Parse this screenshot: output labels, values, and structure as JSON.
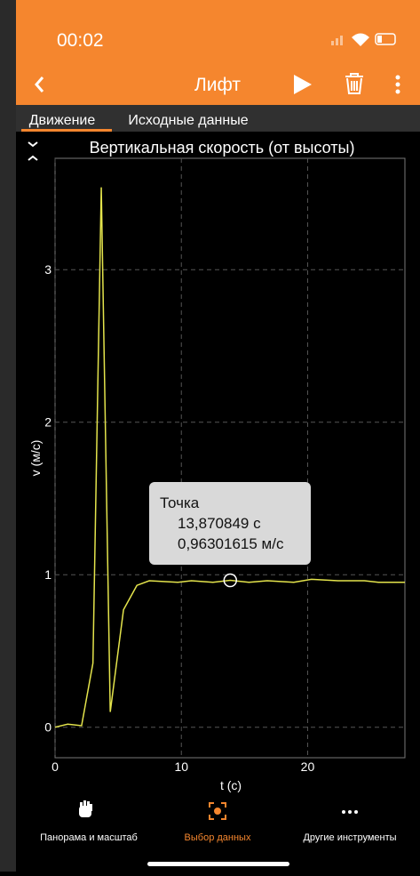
{
  "status_bar": {
    "time": "00:02"
  },
  "toolbar": {
    "title": "Лифт"
  },
  "tabs": [
    "Движение",
    "Исходные данные"
  ],
  "chart": {
    "type": "line",
    "title": "Вертикальная скорость (от высоты)",
    "x_label": "t (с)",
    "y_label": "v (м/с)",
    "xlim": [
      0,
      27.7
    ],
    "ylim": [
      -0.2,
      3.73
    ],
    "xticks": [
      0,
      10,
      20
    ],
    "yticks": [
      0,
      1,
      2,
      3
    ],
    "grid": true,
    "series": [
      {
        "color": "#e4e44c",
        "x": [
          0,
          1.0,
          2.1,
          3.0,
          3.66,
          4.37,
          5.42,
          6.48,
          7.46,
          9.72,
          10.8,
          12.5,
          13.87,
          15.35,
          16.8,
          18.9,
          20.3,
          22.4,
          24.5,
          25.6,
          27.7
        ],
        "y": [
          0,
          0.02,
          0.01,
          0.42,
          3.54,
          0.1,
          0.77,
          0.93,
          0.96,
          0.95,
          0.96,
          0.95,
          0.963,
          0.95,
          0.96,
          0.95,
          0.97,
          0.96,
          0.96,
          0.95,
          0.95
        ]
      }
    ],
    "selected_point": {
      "x": 13.870849,
      "y": 0.96301615,
      "title": "Точка",
      "x_label": "13,870849 с",
      "y_label": "0,96301615 м/с"
    }
  },
  "bottom_nav": [
    "Панорама и масштаб",
    "Выбор данных",
    "Другие инструменты"
  ]
}
